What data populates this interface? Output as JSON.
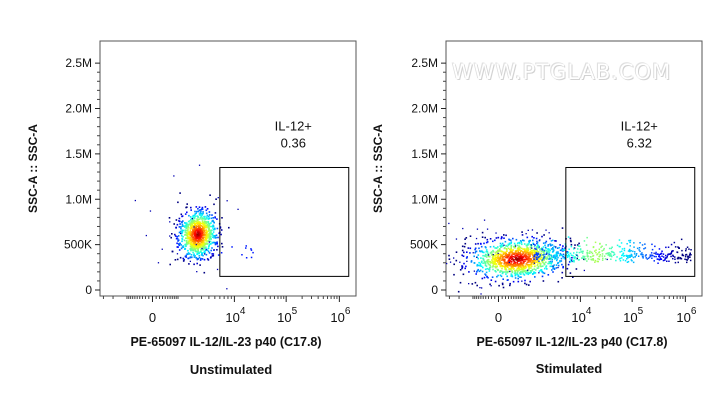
{
  "watermark": "WWW.PTGLAB.COM",
  "chart_data": [
    {
      "type": "scatter",
      "title": "Unstimulated",
      "xlabel": "PE-65097 IL-12/IL-23 p40 (C17.8)",
      "ylabel": "SSC-A :: SSC-A",
      "x_scale": "biexponential",
      "xticks": [
        "0",
        "10^4",
        "10^5",
        "10^6"
      ],
      "yticks": [
        "0",
        "500K",
        "1.0M",
        "1.5M",
        "2.0M",
        "2.5M"
      ],
      "ylim": [
        0,
        2700000
      ],
      "gate": {
        "label": "IL-12+",
        "value": "0.36",
        "x_range": [
          6000,
          1500000
        ],
        "y_range": [
          150000,
          1350000
        ]
      },
      "population": {
        "x_center": 2500,
        "y_center": 620000
      }
    },
    {
      "type": "scatter",
      "title": "Stimulated",
      "xlabel": "PE-65097 IL-12/IL-23 p40 (C17.8)",
      "ylabel": "SSC-A :: SSC-A",
      "x_scale": "biexponential",
      "xticks": [
        "0",
        "10^4",
        "10^5",
        "10^6"
      ],
      "yticks": [
        "0",
        "500K",
        "1.0M",
        "1.5M",
        "2.0M",
        "2.5M"
      ],
      "ylim": [
        0,
        2700000
      ],
      "gate": {
        "label": "IL-12+",
        "value": "6.32",
        "x_range": [
          6000,
          1500000
        ],
        "y_range": [
          150000,
          1350000
        ]
      },
      "population": {
        "x_center": 600,
        "y_center": 350000
      }
    }
  ]
}
